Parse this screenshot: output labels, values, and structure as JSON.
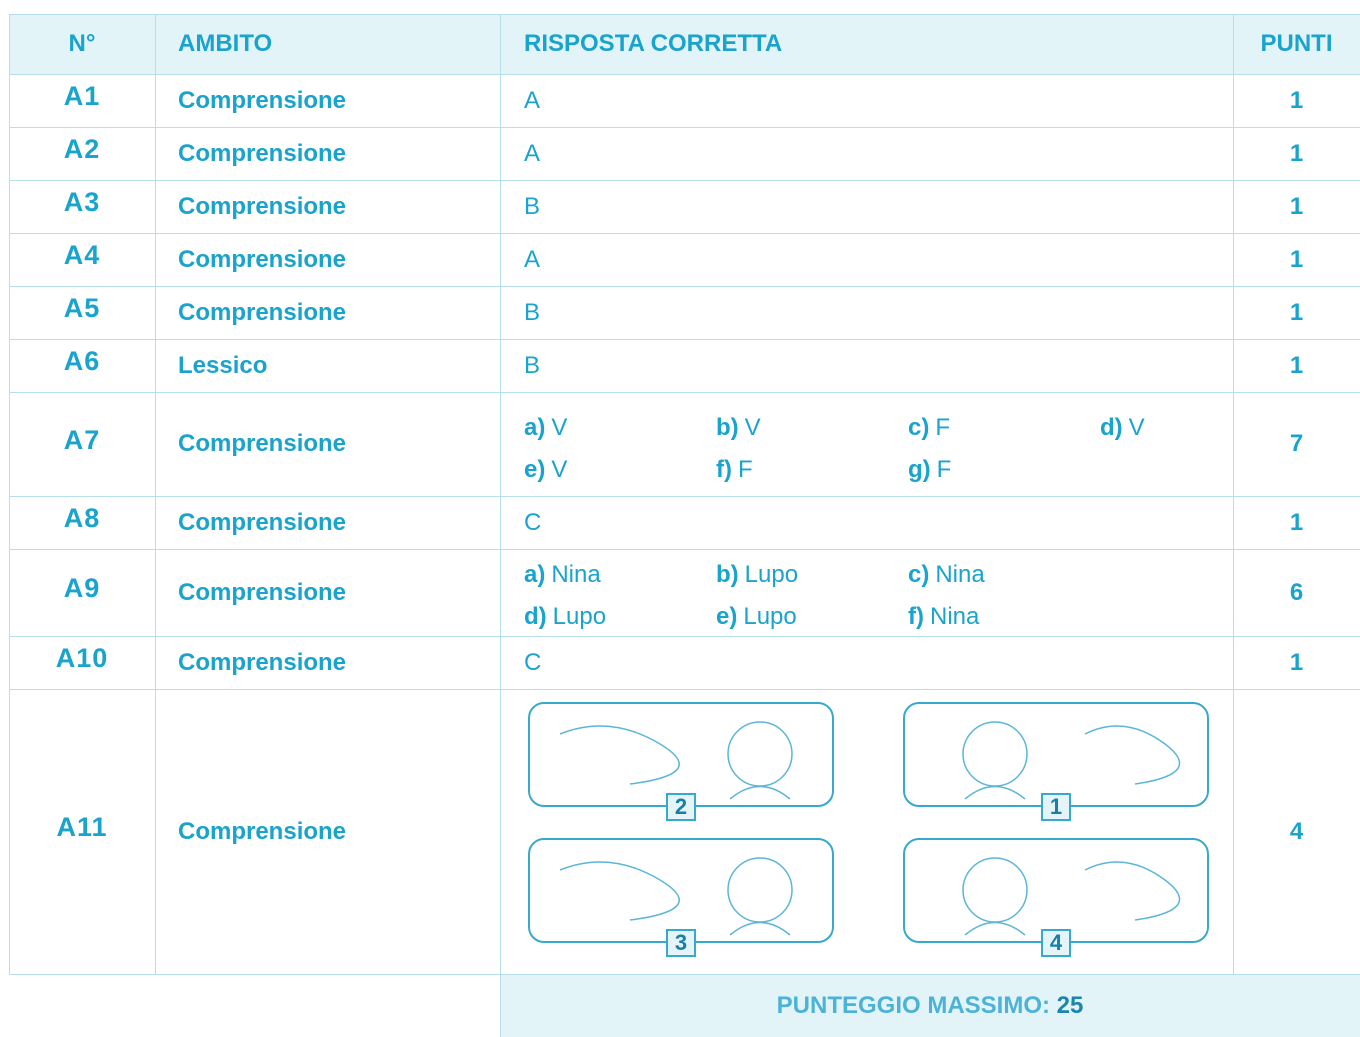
{
  "header": {
    "number": "N°",
    "area": "AMBITO",
    "answer": "RISPOSTA CORRETTA",
    "points": "PUNTI"
  },
  "rows": [
    {
      "number": "A1",
      "area": "Comprensione",
      "answer": "A",
      "points": 1
    },
    {
      "number": "A2",
      "area": "Comprensione",
      "answer": "A",
      "points": 1
    },
    {
      "number": "A3",
      "area": "Comprensione",
      "answer": "B",
      "points": 1
    },
    {
      "number": "A4",
      "area": "Comprensione",
      "answer": "A",
      "points": 1
    },
    {
      "number": "A5",
      "area": "Comprensione",
      "answer": "B",
      "points": 1
    },
    {
      "number": "A6",
      "area": "Lessico",
      "answer": "B",
      "points": 1
    },
    {
      "number": "A7",
      "area": "Comprensione",
      "answer_items": [
        {
          "label": "a)",
          "value": "V"
        },
        {
          "label": "b)",
          "value": "V"
        },
        {
          "label": "c)",
          "value": "F"
        },
        {
          "label": "d)",
          "value": "V"
        },
        {
          "label": "e)",
          "value": "V"
        },
        {
          "label": "f)",
          "value": "F"
        },
        {
          "label": "g)",
          "value": "F"
        }
      ],
      "points": 7
    },
    {
      "number": "A8",
      "area": "Comprensione",
      "answer": "C",
      "points": 1
    },
    {
      "number": "A9",
      "area": "Comprensione",
      "answer_items": [
        {
          "label": "a)",
          "value": "Nina"
        },
        {
          "label": "b)",
          "value": "Lupo"
        },
        {
          "label": "c)",
          "value": "Nina"
        },
        {
          "label": "d)",
          "value": "Lupo"
        },
        {
          "label": "e)",
          "value": "Lupo"
        },
        {
          "label": "f)",
          "value": "Nina"
        }
      ],
      "points": 6
    },
    {
      "number": "A10",
      "area": "Comprensione",
      "answer": "C",
      "points": 1
    },
    {
      "number": "A11",
      "area": "Comprensione",
      "answer_images": [
        {
          "label": "2"
        },
        {
          "label": "1"
        },
        {
          "label": "3"
        },
        {
          "label": "4"
        }
      ],
      "points": 4
    }
  ],
  "footer": {
    "label": "PUNTEGGIO MASSIMO:",
    "value": 25
  }
}
